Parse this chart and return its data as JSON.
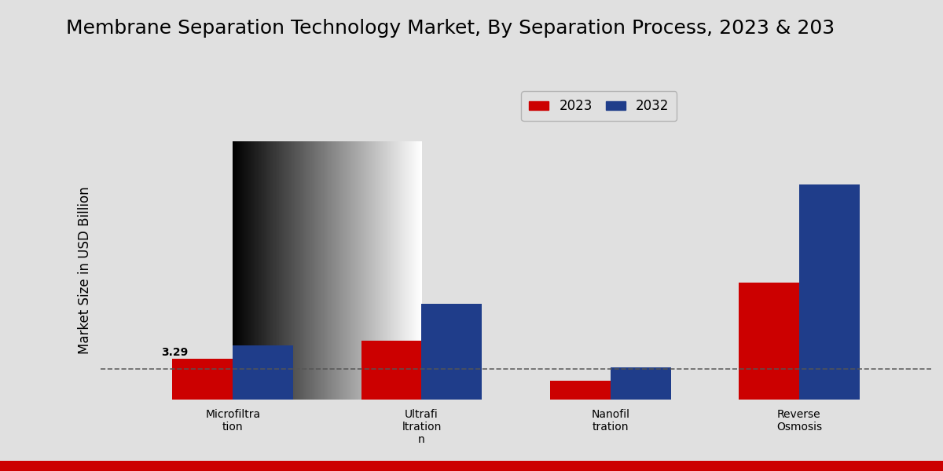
{
  "title": "Membrane Separation Technology Market, By Separation Process, 2023 & 203",
  "ylabel": "Market Size in USD Billion",
  "categories": [
    "Microfiltra\ntion",
    "Ultrafi\nltration\nn",
    "Nanofil\ntration",
    "Reverse\nOsmosis"
  ],
  "xtick_labels": [
    "Microfiltra\ntion",
    "Ultrafi\nltration\nn",
    "Nanofil\ntration",
    "Reverse\nOsmosis"
  ],
  "values_2023": [
    3.29,
    4.8,
    1.5,
    9.5
  ],
  "values_2032": [
    4.4,
    7.8,
    2.6,
    17.5
  ],
  "color_2023": "#cc0000",
  "color_2032": "#1f3d8a",
  "annotation_text": "3.29",
  "bar_width": 0.32,
  "ylim": [
    0,
    21
  ],
  "dashed_line_y": 2.5,
  "bg_left": "#d0d0d0",
  "bg_center": "#e8e8e8",
  "title_fontsize": 18,
  "ylabel_fontsize": 12,
  "legend_labels": [
    "2023",
    "2032"
  ],
  "red_bar_color": "#cc0000"
}
